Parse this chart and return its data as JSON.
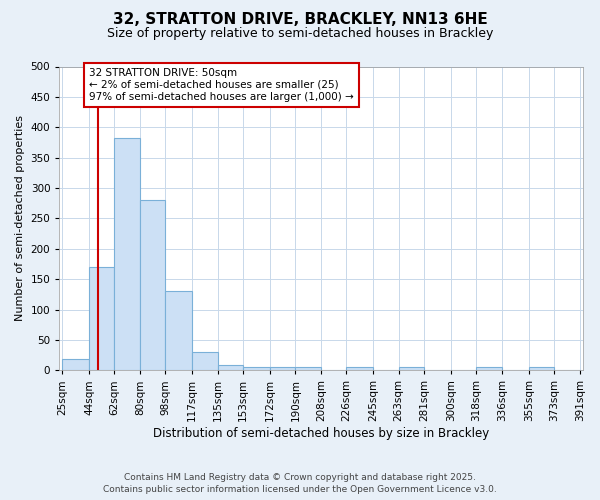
{
  "title_line1": "32, STRATTON DRIVE, BRACKLEY, NN13 6HE",
  "title_line2": "Size of property relative to semi-detached houses in Brackley",
  "xlabel": "Distribution of semi-detached houses by size in Brackley",
  "ylabel": "Number of semi-detached properties",
  "bin_labels": [
    "25sqm",
    "44sqm",
    "62sqm",
    "80sqm",
    "98sqm",
    "117sqm",
    "135sqm",
    "153sqm",
    "172sqm",
    "190sqm",
    "208sqm",
    "226sqm",
    "245sqm",
    "263sqm",
    "281sqm",
    "300sqm",
    "318sqm",
    "336sqm",
    "355sqm",
    "373sqm",
    "391sqm"
  ],
  "bin_edges": [
    25,
    44,
    62,
    80,
    98,
    117,
    135,
    153,
    172,
    190,
    208,
    226,
    245,
    263,
    281,
    300,
    318,
    336,
    355,
    373,
    391
  ],
  "bar_heights": [
    18,
    170,
    383,
    281,
    131,
    30,
    8,
    6,
    6,
    6,
    0,
    6,
    0,
    6,
    0,
    0,
    6,
    0,
    6,
    0
  ],
  "bar_color": "#cce0f5",
  "bar_edge_color": "#7ab0d8",
  "property_size": 50,
  "annotation_line1": "32 STRATTON DRIVE: 50sqm",
  "annotation_line2": "← 2% of semi-detached houses are smaller (25)",
  "annotation_line3": "97% of semi-detached houses are larger (1,000) →",
  "vline_color": "#cc0000",
  "annotation_box_facecolor": "#ffffff",
  "annotation_box_edgecolor": "#cc0000",
  "ylim": [
    0,
    500
  ],
  "yticks": [
    0,
    50,
    100,
    150,
    200,
    250,
    300,
    350,
    400,
    450,
    500
  ],
  "plot_facecolor": "#ffffff",
  "fig_facecolor": "#e8f0f8",
  "grid_color": "#c8d8ea",
  "footer_line1": "Contains HM Land Registry data © Crown copyright and database right 2025.",
  "footer_line2": "Contains public sector information licensed under the Open Government Licence v3.0."
}
